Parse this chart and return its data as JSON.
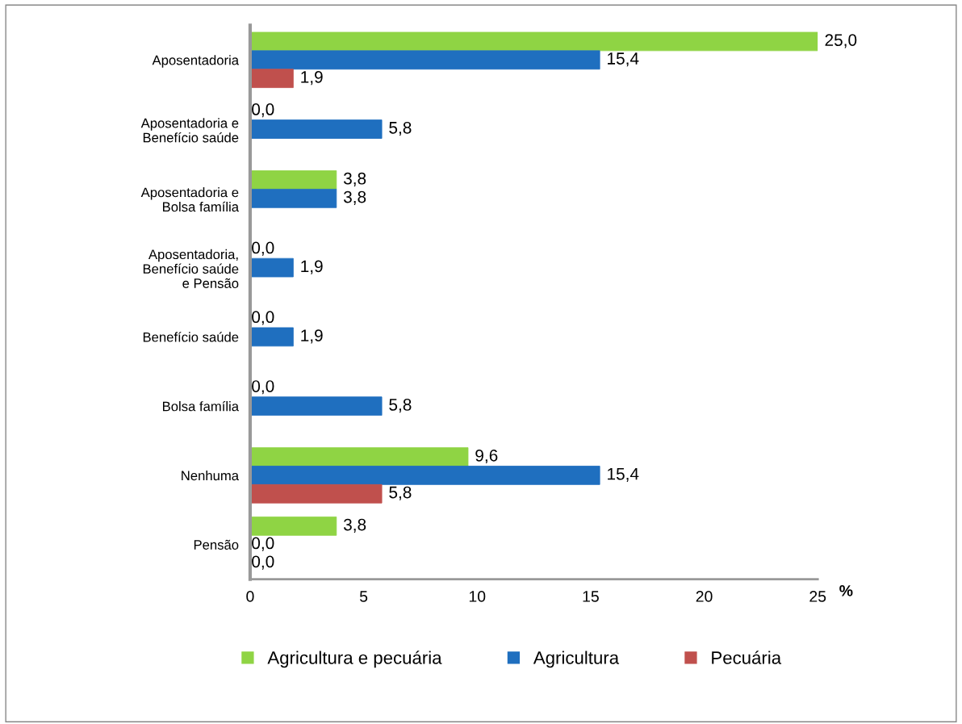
{
  "chart_data": {
    "type": "bar",
    "orientation": "horizontal",
    "xlabel": "%",
    "categories": [
      "Aposentadoria",
      "Aposentadoria e\nBenefício saúde",
      "Aposentadoria e\nBolsa família",
      "Aposentadoria,\nBenefício saúde\ne Pensão",
      "Benefício saúde",
      "Bolsa família",
      "Nenhuma",
      "Pensão"
    ],
    "series": [
      {
        "name": "Agricultura e pecuária",
        "color": "#8fd444",
        "values": [
          25.0,
          0.0,
          3.8,
          0.0,
          0.0,
          0.0,
          9.6,
          3.8
        ],
        "value_labels": [
          "25,0",
          "0,0",
          "3,8",
          "0,0",
          "0,0",
          "0,0",
          "9,6",
          "3,8"
        ]
      },
      {
        "name": "Agricultura",
        "color": "#1f6fbf",
        "values": [
          15.4,
          5.8,
          3.8,
          1.9,
          1.9,
          5.8,
          15.4,
          0.0
        ],
        "value_labels": [
          "15,4",
          "5,8",
          "3,8",
          "1,9",
          "1,9",
          "5,8",
          "15,4",
          "0,0"
        ]
      },
      {
        "name": "Pecuária",
        "color": "#c0504d",
        "values": [
          1.9,
          null,
          null,
          null,
          null,
          null,
          5.8,
          0.0
        ],
        "value_labels": [
          "1,9",
          null,
          null,
          null,
          null,
          null,
          "5,8",
          "0,0"
        ]
      }
    ],
    "xlim": [
      0,
      25
    ],
    "xticks": [
      0,
      5,
      10,
      15,
      20,
      25
    ],
    "grid": false,
    "legend": "bottom"
  }
}
